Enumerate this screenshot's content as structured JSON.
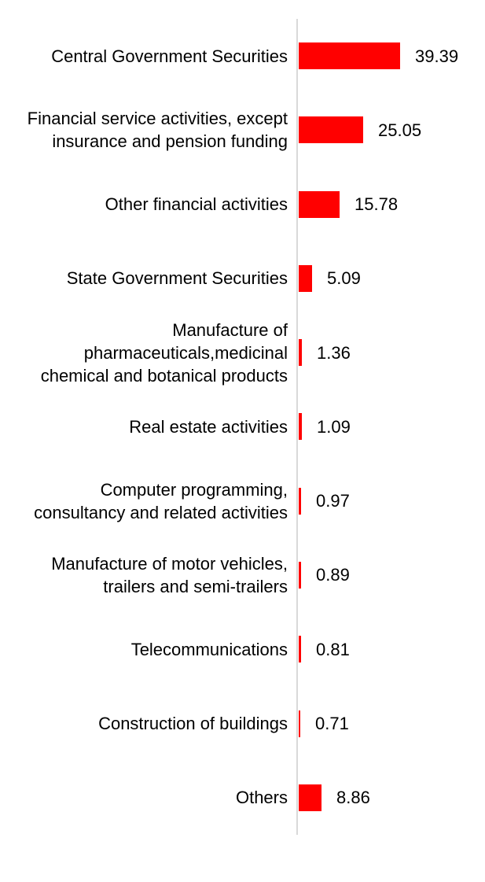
{
  "chart_data": {
    "type": "bar",
    "orientation": "horizontal",
    "title": "",
    "categories": [
      "Central Government Securities",
      "Financial service activities, except\ninsurance and pension funding",
      "Other financial activities",
      "State Government Securities",
      "Manufacture of\npharmaceuticals,medicinal\nchemical and botanical products",
      "Real estate activities",
      "Computer programming,\nconsultancy and related activities",
      "Manufacture of motor vehicles,\ntrailers and semi-trailers",
      "Telecommunications",
      "Construction of buildings",
      "Others"
    ],
    "values": [
      39.39,
      25.05,
      15.78,
      5.09,
      1.36,
      1.09,
      0.97,
      0.89,
      0.81,
      0.71,
      8.86
    ],
    "value_labels": [
      "39.39",
      "25.05",
      "15.78",
      "5.09",
      "1.36",
      "1.09",
      "0.97",
      "0.89",
      "0.81",
      "0.71",
      "8.86"
    ],
    "data_labels_shown": true,
    "legend": "none",
    "grid": false,
    "axis": "single vertical baseline on left of bars",
    "colors": {
      "bar": "#ff0000",
      "axis_line": "#d9d9d9",
      "text": "#000000",
      "background": "#ffffff"
    }
  }
}
